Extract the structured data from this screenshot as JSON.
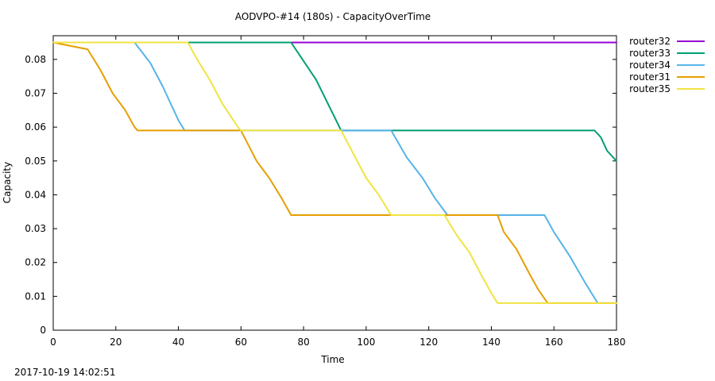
{
  "chart_data": {
    "type": "line",
    "title": "AODVPO-#14 (180s) - CapacityOverTime",
    "xlabel": "Time",
    "ylabel": "Capacity",
    "xlim": [
      0,
      180
    ],
    "ylim": [
      0,
      0.087
    ],
    "x_ticks": [
      0,
      20,
      40,
      60,
      80,
      100,
      120,
      140,
      160,
      180
    ],
    "x_tick_labels": [
      "0",
      "20",
      "40",
      "60",
      "80",
      "100",
      "120",
      "140",
      "160",
      "180"
    ],
    "y_ticks": [
      0,
      0.01,
      0.02,
      0.03,
      0.04,
      0.05,
      0.06,
      0.07,
      0.08
    ],
    "y_tick_labels": [
      "0",
      "0.01",
      "0.02",
      "0.03",
      "0.04",
      "0.05",
      "0.06",
      "0.07",
      "0.08"
    ],
    "grid": false,
    "legend_position": "outside-right",
    "series": [
      {
        "name": "router32",
        "color": "#9400d3",
        "points": [
          [
            0,
            0.085
          ],
          [
            180,
            0.085
          ]
        ]
      },
      {
        "name": "router33",
        "color": "#009e73",
        "points": [
          [
            0,
            0.085
          ],
          [
            76,
            0.085
          ],
          [
            84,
            0.074
          ],
          [
            92,
            0.059
          ],
          [
            173,
            0.059
          ],
          [
            175,
            0.057
          ],
          [
            177,
            0.053
          ],
          [
            180,
            0.05
          ]
        ]
      },
      {
        "name": "router34",
        "color": "#56b4e9",
        "points": [
          [
            0,
            0.085
          ],
          [
            26,
            0.085
          ],
          [
            31,
            0.079
          ],
          [
            35,
            0.072
          ],
          [
            40,
            0.062
          ],
          [
            42,
            0.059
          ],
          [
            108,
            0.059
          ],
          [
            113,
            0.051
          ],
          [
            118,
            0.045
          ],
          [
            122,
            0.039
          ],
          [
            126,
            0.034
          ],
          [
            157,
            0.034
          ],
          [
            160,
            0.029
          ],
          [
            165,
            0.022
          ],
          [
            170,
            0.014
          ],
          [
            174,
            0.008
          ],
          [
            180,
            0.008
          ]
        ]
      },
      {
        "name": "router31",
        "color": "#e69f00",
        "points": [
          [
            0,
            0.085
          ],
          [
            11,
            0.083
          ],
          [
            15,
            0.077
          ],
          [
            19,
            0.07
          ],
          [
            23,
            0.065
          ],
          [
            26,
            0.06
          ],
          [
            27,
            0.059
          ],
          [
            60,
            0.059
          ],
          [
            65,
            0.05
          ],
          [
            69,
            0.045
          ],
          [
            73,
            0.039
          ],
          [
            76,
            0.034
          ],
          [
            142,
            0.034
          ],
          [
            144,
            0.029
          ],
          [
            148,
            0.024
          ],
          [
            152,
            0.017
          ],
          [
            155,
            0.012
          ],
          [
            158,
            0.008
          ],
          [
            180,
            0.008
          ]
        ]
      },
      {
        "name": "router35",
        "color": "#f0e442",
        "points": [
          [
            0,
            0.085
          ],
          [
            43,
            0.085
          ],
          [
            46,
            0.08
          ],
          [
            50,
            0.074
          ],
          [
            54,
            0.067
          ],
          [
            59,
            0.06
          ],
          [
            60,
            0.059
          ],
          [
            92,
            0.059
          ],
          [
            96,
            0.052
          ],
          [
            100,
            0.045
          ],
          [
            104,
            0.04
          ],
          [
            108,
            0.034
          ],
          [
            125,
            0.034
          ],
          [
            129,
            0.028
          ],
          [
            133,
            0.023
          ],
          [
            137,
            0.016
          ],
          [
            140,
            0.011
          ],
          [
            142,
            0.008
          ],
          [
            180,
            0.008
          ]
        ]
      }
    ]
  },
  "footer": {
    "timestamp": "2017-10-19 14:02:51"
  }
}
